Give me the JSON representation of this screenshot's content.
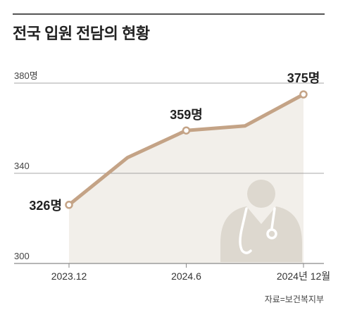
{
  "title": "전국 입원 전담의 현황",
  "source": "자료=보건복지부",
  "colors": {
    "line": "#c4a386",
    "area": "#f2efea",
    "gridline": "#8a8a8a",
    "icon": "#ddd8cf",
    "text": "#222222"
  },
  "icon": "doctor-icon",
  "chart_data": {
    "type": "line",
    "title": "전국 입원 전담의 현황",
    "x": [
      "2023.12",
      "",
      "2024.6",
      "",
      "2024년 12월"
    ],
    "x_ticks": [
      "2023.12",
      "2024.6",
      "2024년 12월"
    ],
    "y_ticks": [
      "380명",
      "340",
      "300"
    ],
    "series": [
      {
        "values": [
          326,
          347,
          359,
          361,
          375
        ]
      }
    ],
    "point_labels": [
      "326명",
      "",
      "359명",
      "",
      "375명"
    ],
    "ylim": [
      300,
      380
    ],
    "grid": "horizontal",
    "legend": "none"
  }
}
